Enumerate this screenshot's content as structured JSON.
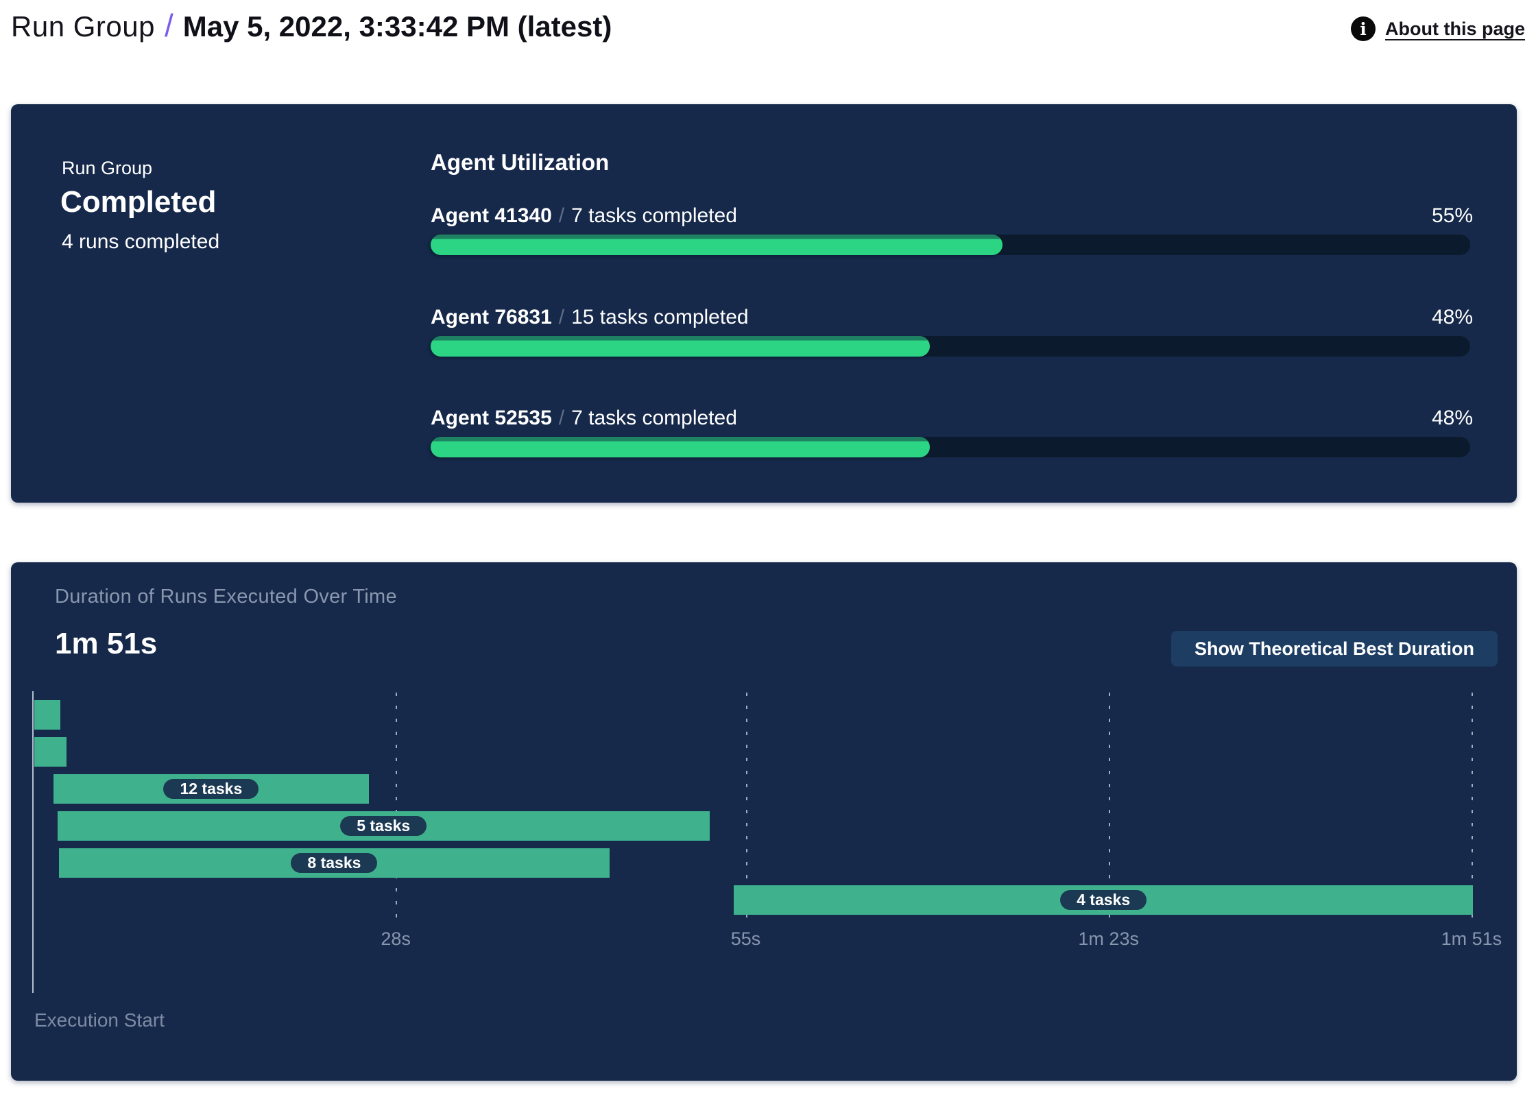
{
  "header": {
    "breadcrumb": "Run Group",
    "separator": "/",
    "title": "May 5, 2022, 3:33:42 PM (latest)",
    "about_link": "About this page",
    "info_glyph": "i"
  },
  "status_card": {
    "label": "Run Group",
    "status": "Completed",
    "sub": "4 runs completed"
  },
  "agent_utilization": {
    "title": "Agent Utilization",
    "rows": [
      {
        "agent": "Agent 41340",
        "sep": "/",
        "tasks": "7 tasks completed",
        "pct": 55,
        "pct_label": "55%"
      },
      {
        "agent": "Agent 76831",
        "sep": "/",
        "tasks": "15 tasks completed",
        "pct": 48,
        "pct_label": "48%"
      },
      {
        "agent": "Agent 52535",
        "sep": "/",
        "tasks": "7 tasks completed",
        "pct": 48,
        "pct_label": "48%"
      }
    ]
  },
  "duration_card": {
    "title": "Duration of Runs Executed Over Time",
    "total": "1m 51s",
    "button": "Show Theoretical Best Duration",
    "execution_start": "Execution Start"
  },
  "colors": {
    "card_bg": "#16294a",
    "accent_purple": "#7a5cf0",
    "progress_green": "#2bd584",
    "progress_green_dark": "#1e8161",
    "progress_track": "#0c1a2d",
    "gantt_green": "#3fb28d",
    "label_pill_bg": "#1b3952",
    "button_bg": "#1d3d63",
    "muted_text": "#8897ae"
  },
  "chart_data": {
    "type": "gantt",
    "title": "Duration of Runs Executed Over Time",
    "total_duration": "1m 51s",
    "xlabel": "Execution Start",
    "time_axis": {
      "unit": "seconds",
      "max_s": 111,
      "ticks": [
        {
          "s": 28,
          "label": "28s"
        },
        {
          "s": 55,
          "label": "55s"
        },
        {
          "s": 83,
          "label": "1m 23s"
        },
        {
          "s": 111,
          "label": "1m 51s"
        }
      ]
    },
    "bars": [
      {
        "start_s": 0.1,
        "end_s": 2.1,
        "label": ""
      },
      {
        "start_s": 0.1,
        "end_s": 2.6,
        "label": ""
      },
      {
        "start_s": 1.6,
        "end_s": 25.9,
        "label": "12 tasks"
      },
      {
        "start_s": 1.9,
        "end_s": 52.2,
        "label": "5 tasks"
      },
      {
        "start_s": 2.0,
        "end_s": 44.5,
        "label": "8 tasks"
      },
      {
        "start_s": 54.1,
        "end_s": 111.1,
        "label": "4 tasks"
      }
    ]
  }
}
